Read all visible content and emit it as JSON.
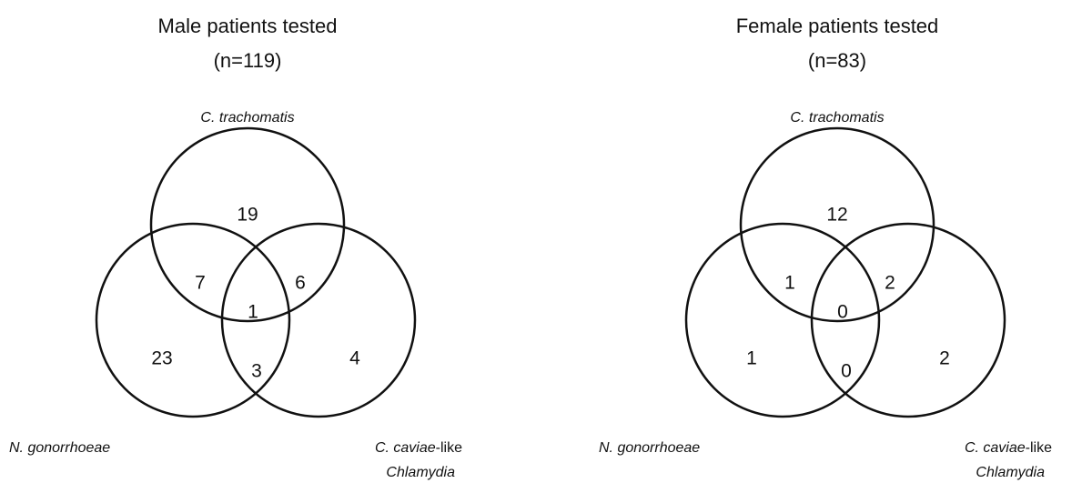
{
  "panels": [
    {
      "title": "Male patients tested",
      "subtitle": "(n=119)",
      "sets": {
        "top": "C. trachomatis",
        "left": "N. gonorrhoeae",
        "right": [
          "C. caviae",
          "-like",
          "Chlamydia"
        ]
      },
      "regions": [
        19,
        7,
        6,
        1,
        23,
        3,
        4
      ]
    },
    {
      "title": "Female patients tested",
      "subtitle": "(n=83)",
      "sets": {
        "top": "C. trachomatis",
        "left": "N. gonorrhoeae",
        "right": [
          "C. caviae",
          "-like",
          "Chlamydia"
        ]
      },
      "regions": [
        12,
        1,
        2,
        0,
        1,
        0,
        2
      ]
    }
  ]
}
